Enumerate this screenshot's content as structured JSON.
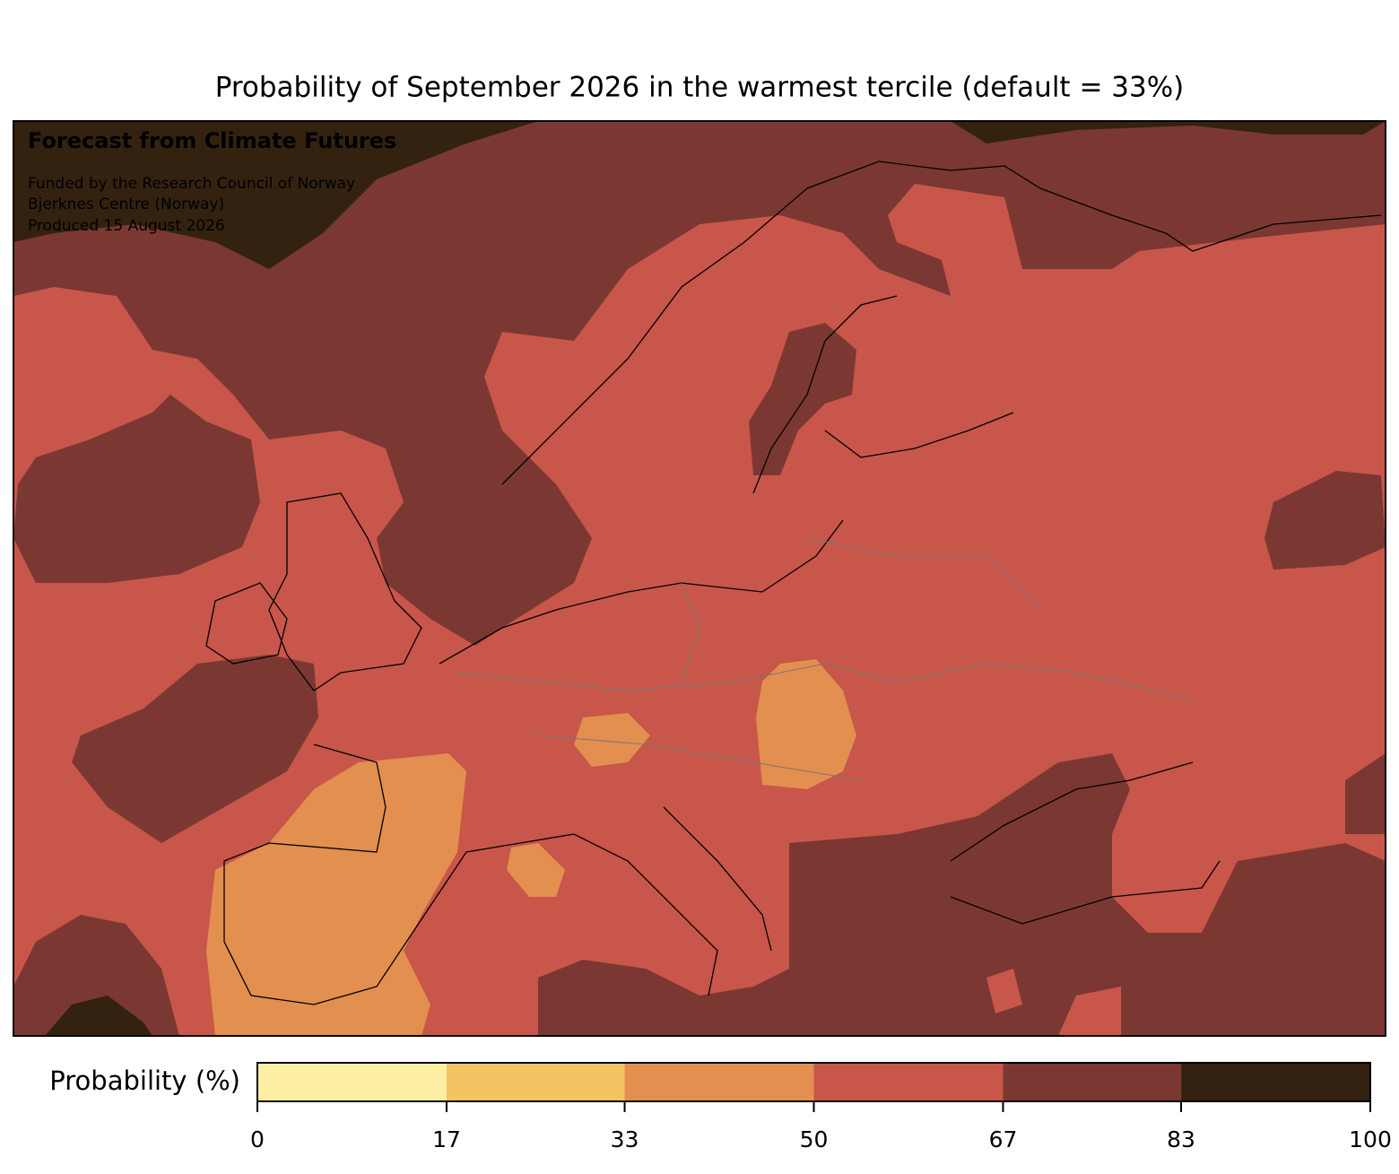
{
  "title": "Probability of September 2026 in the warmest tercile (default = 33%)",
  "annotation": {
    "heading": "Forecast from Climate Futures",
    "lines": [
      "Funded by the Research Council of Norway",
      "Bjerknes Centre (Norway)",
      "Produced 15 August 2026"
    ]
  },
  "colorbar": {
    "label": "Probability (%)",
    "lim": [
      0,
      100
    ],
    "ticks": [
      0,
      17,
      33,
      50,
      67,
      83,
      100
    ],
    "colors": [
      "#fcefa4",
      "#f2c462",
      "#e38f50",
      "#c8564a",
      "#7b3832",
      "#33220f"
    ]
  }
}
